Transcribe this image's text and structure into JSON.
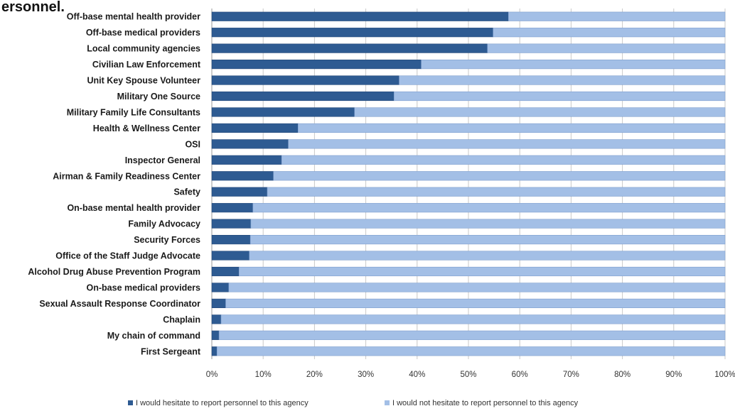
{
  "page_title_fragment": "ersonnel.",
  "chart_data": {
    "type": "bar",
    "orientation": "horizontal",
    "stacked": true,
    "percent_stacked": true,
    "categories": [
      "Off-base mental health provider",
      "Off-base medical providers",
      "Local community agencies",
      "Civilian Law Enforcement",
      "Unit Key Spouse Volunteer",
      "Military One Source",
      "Military Family Life Consultants",
      "Health & Wellness Center",
      "OSI",
      "Inspector General",
      "Airman & Family Readiness Center",
      "Safety",
      "On-base mental health provider",
      "Family Advocacy",
      "Security Forces",
      "Office of the Staff Judge Advocate",
      "Alcohol Drug Abuse Prevention Program",
      "On-base medical providers",
      "Sexual Assault Response Coordinator",
      "Chaplain",
      "My chain of command",
      "First Sergeant"
    ],
    "series": [
      {
        "name": "I would hesitate to report personnel to this agency",
        "color": "#2e5b92",
        "values": [
          57.8,
          54.8,
          53.7,
          40.8,
          36.5,
          35.5,
          27.8,
          16.8,
          14.9,
          13.6,
          12.0,
          10.8,
          8.0,
          7.6,
          7.5,
          7.3,
          5.3,
          3.3,
          2.7,
          1.8,
          1.4,
          1.0
        ]
      },
      {
        "name": "I would not hesitate to report personnel to this agency",
        "color": "#a3bfe6",
        "values": [
          42.2,
          45.2,
          46.3,
          59.2,
          63.5,
          64.5,
          72.2,
          83.2,
          85.1,
          86.4,
          88.0,
          89.2,
          92.0,
          92.4,
          92.5,
          92.7,
          94.7,
          96.7,
          97.3,
          98.2,
          98.6,
          99.0
        ]
      }
    ],
    "x_ticks": [
      "0%",
      "10%",
      "20%",
      "30%",
      "40%",
      "50%",
      "60%",
      "70%",
      "80%",
      "90%",
      "100%"
    ],
    "xlim": [
      0,
      100
    ],
    "grid": true,
    "legend_position": "bottom"
  }
}
